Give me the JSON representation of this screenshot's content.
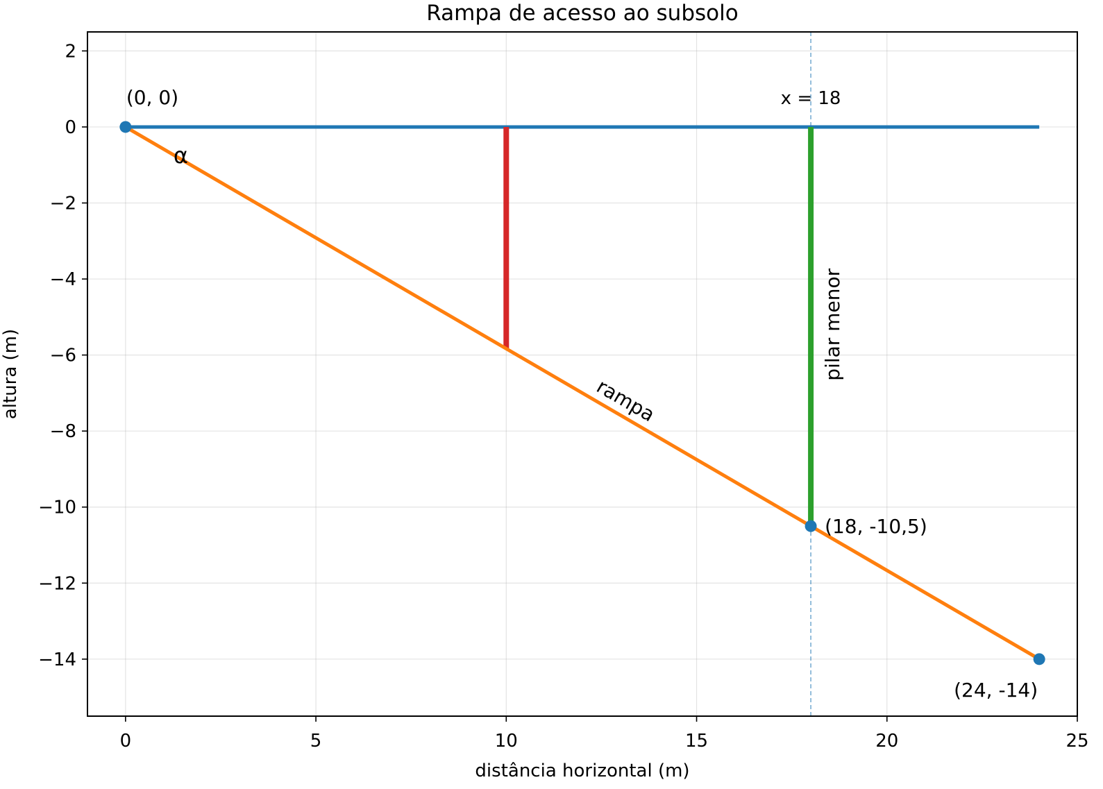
{
  "chart_data": {
    "type": "line",
    "title": "Rampa de acesso ao subsolo",
    "xlabel": "distância horizontal (m)",
    "ylabel": "altura (m)",
    "xlim": [
      -1,
      25
    ],
    "ylim": [
      -15.5,
      2.5
    ],
    "xticks": [
      0,
      5,
      10,
      15,
      20,
      25
    ],
    "yticks": [
      2,
      0,
      -2,
      -4,
      -6,
      -8,
      -10,
      -12,
      -14
    ],
    "xtick_labels": [
      "0",
      "5",
      "10",
      "15",
      "20",
      "25"
    ],
    "ytick_labels": [
      "2",
      "0",
      "−2",
      "−4",
      "−6",
      "−8",
      "−10",
      "−12",
      "−14"
    ],
    "grid": true,
    "colors": {
      "ground": "#1f77b4",
      "ramp": "#ff7f0e",
      "pillar_red": "#d62728",
      "pillar_green": "#2ca02c",
      "guide": "#1f77b4"
    },
    "lines": [
      {
        "role": "ground",
        "x": [
          0,
          24
        ],
        "y": [
          0,
          0
        ]
      },
      {
        "role": "ramp",
        "x": [
          0,
          24
        ],
        "y": [
          0,
          -14
        ]
      },
      {
        "role": "pillar_red",
        "x": [
          10,
          10
        ],
        "y": [
          0,
          -5.83
        ]
      },
      {
        "role": "pillar_green",
        "x": [
          18,
          18
        ],
        "y": [
          0,
          -10.5
        ]
      }
    ],
    "guide_line": {
      "x": 18
    },
    "points": [
      {
        "x": 0,
        "y": 0
      },
      {
        "x": 18,
        "y": -10.5
      },
      {
        "x": 24,
        "y": -14
      }
    ],
    "annotations": {
      "origin": "(0, 0)",
      "middle_point": "(18, -10,5)",
      "end_point": "(24, -14)",
      "guide": "x = 18",
      "angle": "α",
      "ramp": "rampa",
      "pillar": "pilar menor"
    }
  }
}
